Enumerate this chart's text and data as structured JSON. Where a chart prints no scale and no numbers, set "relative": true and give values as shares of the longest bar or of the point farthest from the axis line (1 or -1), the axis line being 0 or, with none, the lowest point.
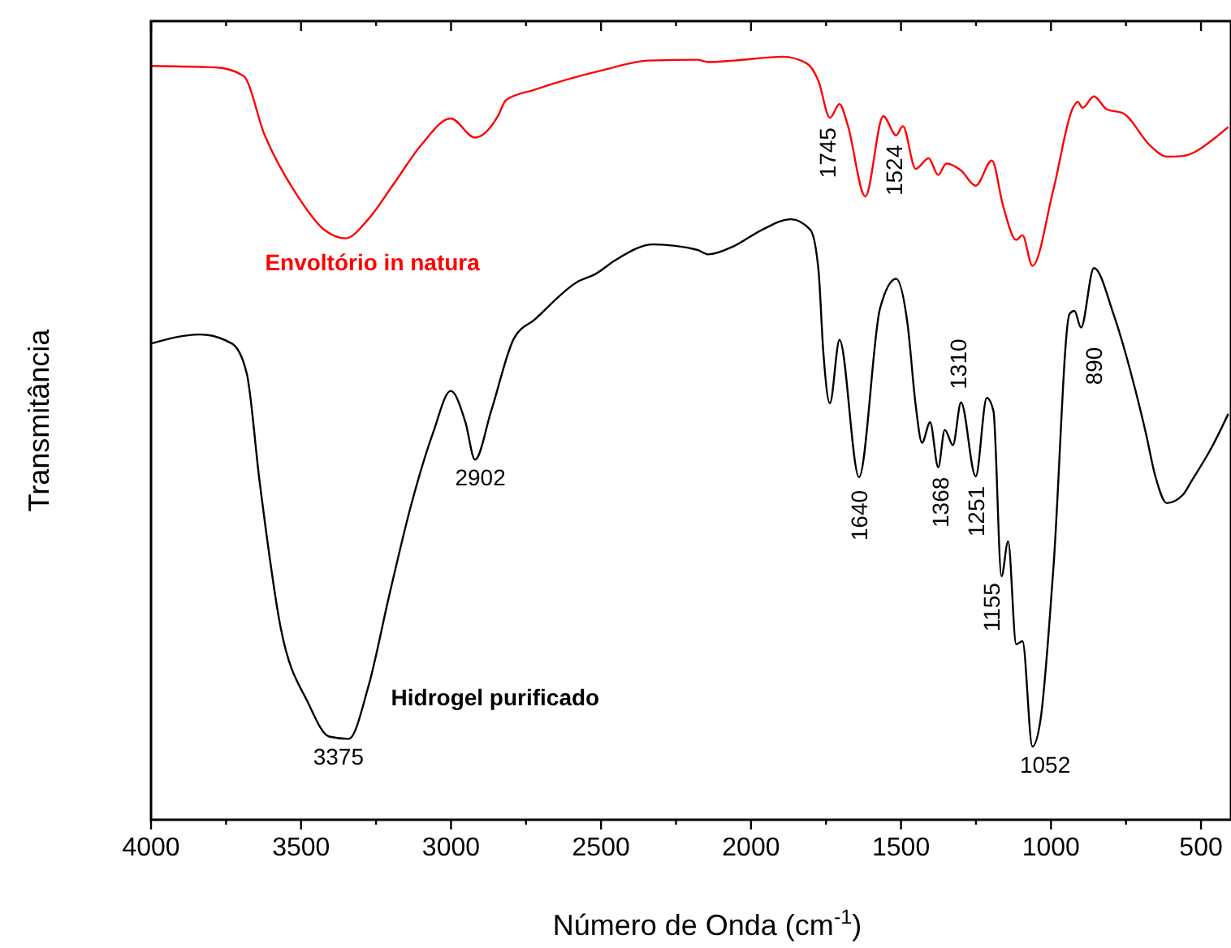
{
  "chart_data": {
    "type": "line",
    "relative": true,
    "xlabel": "Número de Onda (cm$^{-1}$)",
    "ylabel": "Transmitância",
    "xlim": [
      4000,
      400
    ],
    "xticks": [
      4000,
      {
        "value": 3750,
        "label": null
      },
      3500,
      {
        "value": 3250,
        "label": null
      },
      3000,
      {
        "value": 2750,
        "label": null
      },
      2500,
      {
        "value": 2250,
        "label": null
      },
      2000,
      {
        "value": 1750,
        "label": null
      },
      1500,
      {
        "value": 1250,
        "label": null
      },
      1000,
      {
        "value": 750,
        "label": null
      },
      500
    ],
    "line_style": "solid",
    "series": [
      {
        "name": "Envoltório in natura",
        "color": "#ff0000",
        "x": [
          4000,
          3784,
          3692,
          3622,
          3514,
          3422,
          3352,
          3276,
          3190,
          3098,
          3001,
          2920,
          2844,
          2817,
          2720,
          2488,
          2342,
          2180,
          2142,
          2056,
          1894,
          1813,
          1775,
          1737,
          1705,
          1678,
          1619,
          1559,
          1516,
          1494,
          1451,
          1408,
          1376,
          1349,
          1300,
          1251,
          1197,
          1160,
          1116,
          1095,
          1062,
          992,
          927,
          911,
          895,
          857,
          814,
          760,
          668,
          614,
          560,
          452,
          409
        ],
        "values": [
          0.988,
          0.986,
          0.975,
          0.898,
          0.819,
          0.773,
          0.762,
          0.787,
          0.834,
          0.885,
          0.919,
          0.894,
          0.922,
          0.943,
          0.957,
          0.983,
          0.995,
          0.996,
          0.993,
          0.995,
          1.0,
          0.991,
          0.968,
          0.92,
          0.938,
          0.911,
          0.817,
          0.922,
          0.897,
          0.909,
          0.853,
          0.867,
          0.845,
          0.86,
          0.851,
          0.831,
          0.864,
          0.805,
          0.76,
          0.766,
          0.726,
          0.826,
          0.933,
          0.941,
          0.933,
          0.948,
          0.931,
          0.926,
          0.883,
          0.869,
          0.87,
          0.894,
          0.908
        ]
      },
      {
        "name": "Hidrogel purificado",
        "color": "#000000",
        "x": [
          4000,
          3838,
          3730,
          3681,
          3638,
          3568,
          3476,
          3406,
          3341,
          3276,
          3206,
          3136,
          3060,
          3001,
          2952,
          2920,
          2866,
          2790,
          2720,
          2574,
          2520,
          2450,
          2326,
          2180,
          2142,
          2056,
          1964,
          1867,
          1802,
          1775,
          1759,
          1737,
          1705,
          1640,
          1570,
          1516,
          1478,
          1451,
          1430,
          1403,
          1376,
          1354,
          1327,
          1300,
          1251,
          1214,
          1192,
          1165,
          1143,
          1116,
          1095,
          1062,
          1035,
          992,
          938,
          922,
          900,
          857,
          792,
          738,
          684,
          652,
          614,
          560,
          533,
          463,
          409
        ],
        "values": [
          0.624,
          0.636,
          0.624,
          0.585,
          0.443,
          0.252,
          0.153,
          0.109,
          0.106,
          0.174,
          0.294,
          0.408,
          0.507,
          0.562,
          0.521,
          0.472,
          0.536,
          0.631,
          0.656,
          0.706,
          0.715,
          0.734,
          0.754,
          0.747,
          0.741,
          0.752,
          0.773,
          0.787,
          0.773,
          0.72,
          0.613,
          0.546,
          0.629,
          0.449,
          0.67,
          0.709,
          0.649,
          0.543,
          0.494,
          0.521,
          0.462,
          0.511,
          0.491,
          0.547,
          0.45,
          0.553,
          0.536,
          0.319,
          0.365,
          0.23,
          0.234,
          0.096,
          0.131,
          0.33,
          0.663,
          0.667,
          0.645,
          0.723,
          0.663,
          0.592,
          0.507,
          0.45,
          0.415,
          0.426,
          0.443,
          0.489,
          0.532
        ]
      }
    ],
    "annotations": [
      {
        "text": "1745",
        "x": 1745,
        "y": 0.92
      },
      {
        "text": "1524",
        "x": 1524,
        "y": 0.897
      },
      {
        "text": "3375",
        "x": 3375,
        "y": 0.106
      },
      {
        "text": "2902",
        "x": 2902,
        "y": 0.472
      },
      {
        "text": "1640",
        "x": 1640,
        "y": 0.449
      },
      {
        "text": "1368",
        "x": 1368,
        "y": 0.462
      },
      {
        "text": "1310",
        "x": 1310,
        "y": 0.547
      },
      {
        "text": "1251",
        "x": 1251,
        "y": 0.45
      },
      {
        "text": "1155",
        "x": 1155,
        "y": 0.319
      },
      {
        "text": "1052",
        "x": 1052,
        "y": 0.096
      },
      {
        "text": "890",
        "x": 890,
        "y": 0.645
      }
    ]
  }
}
